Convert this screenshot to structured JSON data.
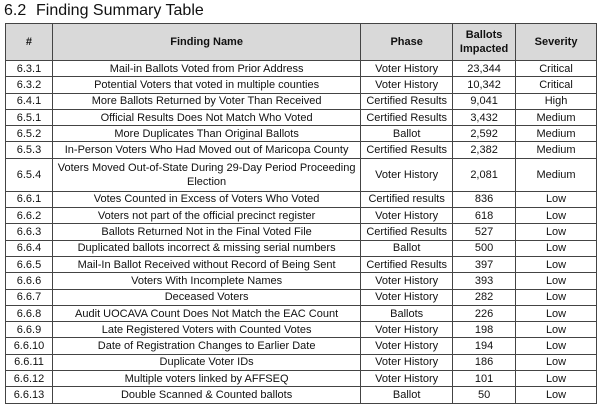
{
  "section": {
    "number": "6.2",
    "title": "Finding Summary Table"
  },
  "table": {
    "headers": [
      "#",
      "Finding Name",
      "Phase",
      "Ballots Impacted",
      "Severity"
    ],
    "rows": [
      [
        "6.3.1",
        "Mail-in Ballots Voted from Prior Address",
        "Voter History",
        "23,344",
        "Critical"
      ],
      [
        "6.3.2",
        "Potential Voters that voted in multiple counties",
        "Voter History",
        "10,342",
        "Critical"
      ],
      [
        "6.4.1",
        "More Ballots Returned by Voter Than Received",
        "Certified Results",
        "9,041",
        "High"
      ],
      [
        "6.5.1",
        "Official Results Does Not Match Who Voted",
        "Certified Results",
        "3,432",
        "Medium"
      ],
      [
        "6.5.2",
        "More Duplicates Than Original Ballots",
        "Ballot",
        "2,592",
        "Medium"
      ],
      [
        "6.5.3",
        "In-Person Voters Who Had Moved out of Maricopa County",
        "Certified Results",
        "2,382",
        "Medium"
      ],
      [
        "6.5.4",
        "Voters Moved Out-of-State During 29-Day Period Proceeding Election",
        "Voter History",
        "2,081",
        "Medium"
      ],
      [
        "6.6.1",
        "Votes Counted in Excess of Voters Who Voted",
        "Certified results",
        "836",
        "Low"
      ],
      [
        "6.6.2",
        "Voters not part of the official precinct register",
        "Voter History",
        "618",
        "Low"
      ],
      [
        "6.6.3",
        "Ballots Returned Not in the Final Voted File",
        "Certified Results",
        "527",
        "Low"
      ],
      [
        "6.6.4",
        "Duplicated ballots incorrect & missing serial numbers",
        "Ballot",
        "500",
        "Low"
      ],
      [
        "6.6.5",
        "Mail-In Ballot Received without Record of Being Sent",
        "Certified Results",
        "397",
        "Low"
      ],
      [
        "6.6.6",
        "Voters With Incomplete Names",
        "Voter History",
        "393",
        "Low"
      ],
      [
        "6.6.7",
        "Deceased Voters",
        "Voter History",
        "282",
        "Low"
      ],
      [
        "6.6.8",
        "Audit UOCAVA Count Does Not Match the EAC Count",
        "Ballots",
        "226",
        "Low"
      ],
      [
        "6.6.9",
        "Late Registered Voters with Counted Votes",
        "Voter History",
        "198",
        "Low"
      ],
      [
        "6.6.10",
        "Date of Registration Changes to Earlier Date",
        "Voter History",
        "194",
        "Low"
      ],
      [
        "6.6.11",
        "Duplicate Voter IDs",
        "Voter History",
        "186",
        "Low"
      ],
      [
        "6.6.12",
        "Multiple voters linked by AFFSEQ",
        "Voter History",
        "101",
        "Low"
      ],
      [
        "6.6.13",
        "Double Scanned & Counted ballots",
        "Ballot",
        "50",
        "Low"
      ]
    ]
  },
  "colors": {
    "header_bg": "#d9d9d9",
    "border": "#444444"
  }
}
